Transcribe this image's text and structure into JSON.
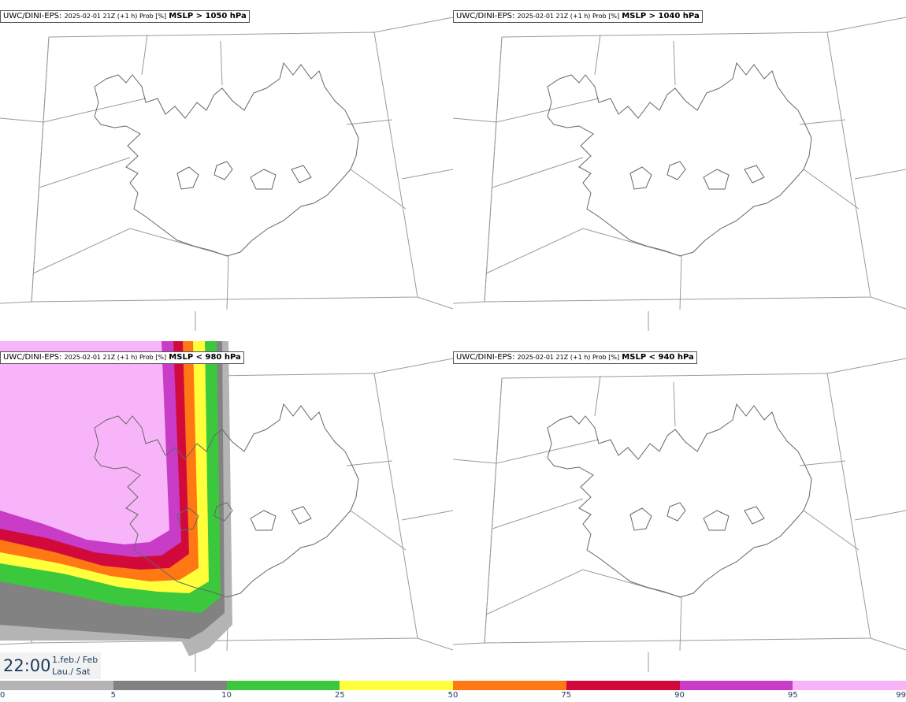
{
  "panels": [
    {
      "model": "UWC/DINI-EPS",
      "meta": "2025-02-01 21Z (+1 h) Prob [%]",
      "threshold": "MSLP > 1050 hPa",
      "has_field": false
    },
    {
      "model": "UWC/DINI-EPS",
      "meta": "2025-02-01 21Z (+1 h) Prob [%]",
      "threshold": "MSLP > 1040 hPa",
      "has_field": false
    },
    {
      "model": "UWC/DINI-EPS",
      "meta": "2025-02-01 21Z (+1 h) Prob [%]",
      "threshold": "MSLP < 980 hPa",
      "has_field": true
    },
    {
      "model": "UWC/DINI-EPS",
      "meta": "2025-02-01 21Z (+1 h) Prob [%]",
      "threshold": "MSLP < 940 hPa",
      "has_field": false
    }
  ],
  "valid_time": {
    "time": "22:00",
    "date_line1": "1.feb./ Feb",
    "date_line2": "Lau./ Sat"
  },
  "legend": {
    "ticks": [
      "0",
      "5",
      "10",
      "25",
      "50",
      "75",
      "90",
      "95",
      "99"
    ],
    "colors": [
      "#ffffff",
      "#b4b4b4",
      "#828282",
      "#3cc83c",
      "#ffff3c",
      "#ff7814",
      "#d20a3c",
      "#c83cc8",
      "#f8b4f8"
    ]
  }
}
